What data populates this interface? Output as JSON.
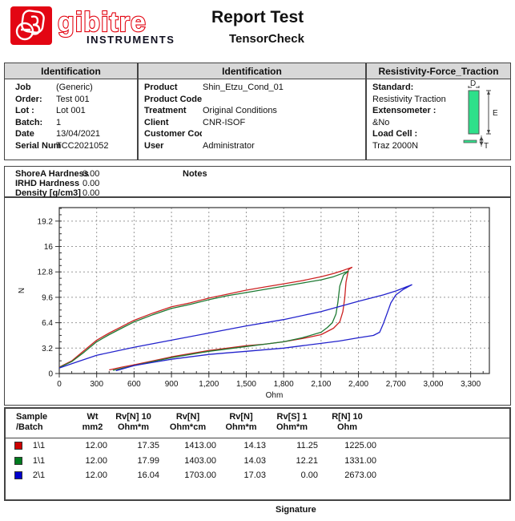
{
  "header": {
    "brand": "gibitre",
    "brand_sub": "INSTRUMENTS",
    "brand_red": "#e30613",
    "title": "Report Test",
    "subtitle": "TensorCheck"
  },
  "id_left": {
    "title": "Identification",
    "rows": [
      {
        "label": "Job",
        "value": "(Generic)"
      },
      {
        "label": "Order:",
        "value": "Test 001"
      },
      {
        "label": "Lot :",
        "value": "Lot 001"
      },
      {
        "label": "Batch:",
        "value": "1"
      },
      {
        "label": "Date",
        "value": "13/04/2021"
      },
      {
        "label": "Serial Number",
        "value": "TCC2021052"
      }
    ]
  },
  "id_mid": {
    "title": "Identification",
    "rows": [
      {
        "label": "Product",
        "value": "Shin_Etzu_Cond_01"
      },
      {
        "label": "Product Code",
        "value": ""
      },
      {
        "label": "Treatment",
        "value": "Original Conditions"
      },
      {
        "label": "Client",
        "value": "CNR-ISOF"
      },
      {
        "label": "Customer Cod",
        "value": ""
      },
      {
        "label": "User",
        "value": "Administrator"
      }
    ]
  },
  "id_right": {
    "title": "Resistivity-Force_Traction",
    "lines": [
      {
        "text": "Standard:",
        "bold": true
      },
      {
        "text": "Resistivity Traction",
        "bold": false
      },
      {
        "text": "Extensometer :",
        "bold": true
      },
      {
        "text": "&No",
        "bold": false
      },
      {
        "text": "Load Cell :",
        "bold": true
      },
      {
        "text": "Traz 2000N",
        "bold": false
      }
    ],
    "specimen": {
      "d_label": "D",
      "e_label": "E",
      "t_label": "T",
      "bar_color": "#2ee08a"
    }
  },
  "hardness": {
    "rows": [
      {
        "label": "ShoreA Hardness",
        "value": "0.00"
      },
      {
        "label": "IRHD  Hardness",
        "value": "0.00"
      },
      {
        "label": "Density [g/cm3]",
        "value": "0.00"
      }
    ],
    "notes_label": "Notes"
  },
  "chart_data": {
    "type": "line",
    "title": "",
    "xlabel": "Ohm",
    "ylabel": "N",
    "xlim": [
      0,
      3450
    ],
    "ylim": [
      0,
      20.9
    ],
    "grid": true,
    "legend": "none (colors keyed to results table swatches)",
    "x_ticks": [
      0,
      300,
      600,
      900,
      1200,
      1500,
      1800,
      2100,
      2400,
      2700,
      3000,
      3300
    ],
    "x_tick_labels": [
      "0",
      "300",
      "600",
      "900",
      "1,200",
      "1,500",
      "1,800",
      "2,100",
      "2,400",
      "2,700",
      "3,000",
      "3,300"
    ],
    "x_minor_step": 100,
    "y_ticks": [
      0,
      3.2,
      6.4,
      9.6,
      12.8,
      16,
      19.2
    ],
    "y_tick_labels": [
      "0",
      "3.2",
      "6.4",
      "9.6",
      "12.8",
      "16",
      "19.2"
    ],
    "y_minor_step": 0.8,
    "series": [
      {
        "name": "Sample 1\\1 loading",
        "color": "#cc2222",
        "points": [
          [
            0,
            0.8
          ],
          [
            100,
            1.6
          ],
          [
            200,
            2.9
          ],
          [
            300,
            4.2
          ],
          [
            400,
            5.1
          ],
          [
            500,
            5.9
          ],
          [
            600,
            6.7
          ],
          [
            750,
            7.6
          ],
          [
            900,
            8.4
          ],
          [
            1050,
            8.9
          ],
          [
            1200,
            9.5
          ],
          [
            1350,
            10.0
          ],
          [
            1500,
            10.5
          ],
          [
            1650,
            10.9
          ],
          [
            1800,
            11.3
          ],
          [
            1950,
            11.7
          ],
          [
            2100,
            12.2
          ],
          [
            2200,
            12.6
          ],
          [
            2280,
            13.0
          ],
          [
            2350,
            13.4
          ]
        ]
      },
      {
        "name": "Sample 1\\1 unloading",
        "color": "#cc2222",
        "points": [
          [
            2350,
            13.4
          ],
          [
            2320,
            13.1
          ],
          [
            2300,
            11.5
          ],
          [
            2290,
            9.5
          ],
          [
            2275,
            7.8
          ],
          [
            2250,
            6.5
          ],
          [
            2200,
            5.7
          ],
          [
            2100,
            4.9
          ],
          [
            1950,
            4.4
          ],
          [
            1800,
            4.0
          ],
          [
            1650,
            3.7
          ],
          [
            1500,
            3.5
          ],
          [
            1350,
            3.2
          ],
          [
            1200,
            2.9
          ],
          [
            1050,
            2.5
          ],
          [
            900,
            2.1
          ],
          [
            750,
            1.6
          ],
          [
            600,
            1.1
          ],
          [
            500,
            0.8
          ],
          [
            400,
            0.45
          ]
        ]
      },
      {
        "name": "Sample 1\\1 (repeat) loading",
        "color": "#1e7a33",
        "points": [
          [
            0,
            0.75
          ],
          [
            100,
            1.5
          ],
          [
            200,
            2.7
          ],
          [
            300,
            4.0
          ],
          [
            400,
            4.9
          ],
          [
            500,
            5.7
          ],
          [
            600,
            6.5
          ],
          [
            750,
            7.4
          ],
          [
            900,
            8.2
          ],
          [
            1050,
            8.7
          ],
          [
            1200,
            9.3
          ],
          [
            1350,
            9.8
          ],
          [
            1500,
            10.2
          ],
          [
            1650,
            10.6
          ],
          [
            1800,
            11.0
          ],
          [
            1950,
            11.4
          ],
          [
            2100,
            11.8
          ],
          [
            2200,
            12.2
          ],
          [
            2270,
            12.6
          ],
          [
            2320,
            12.9
          ]
        ]
      },
      {
        "name": "Sample 1\\1 (repeat) unloading",
        "color": "#1e7a33",
        "points": [
          [
            2320,
            12.9
          ],
          [
            2280,
            12.4
          ],
          [
            2250,
            11.0
          ],
          [
            2235,
            9.0
          ],
          [
            2220,
            7.5
          ],
          [
            2190,
            6.4
          ],
          [
            2150,
            5.8
          ],
          [
            2100,
            5.2
          ],
          [
            1950,
            4.5
          ],
          [
            1800,
            4.0
          ],
          [
            1650,
            3.7
          ],
          [
            1500,
            3.4
          ],
          [
            1350,
            3.1
          ],
          [
            1200,
            2.8
          ],
          [
            1050,
            2.4
          ],
          [
            900,
            2.0
          ],
          [
            750,
            1.5
          ],
          [
            600,
            1.0
          ],
          [
            430,
            0.4
          ]
        ]
      },
      {
        "name": "Sample 2\\1 loading",
        "color": "#2222cc",
        "points": [
          [
            0,
            0.7
          ],
          [
            150,
            1.5
          ],
          [
            300,
            2.3
          ],
          [
            600,
            3.3
          ],
          [
            900,
            4.2
          ],
          [
            1200,
            5.1
          ],
          [
            1500,
            6.0
          ],
          [
            1800,
            6.8
          ],
          [
            2100,
            7.8
          ],
          [
            2400,
            9.1
          ],
          [
            2600,
            9.9
          ],
          [
            2700,
            10.4
          ],
          [
            2830,
            11.2
          ]
        ]
      },
      {
        "name": "Sample 2\\1 unloading",
        "color": "#2222cc",
        "points": [
          [
            2830,
            11.2
          ],
          [
            2760,
            10.6
          ],
          [
            2700,
            9.9
          ],
          [
            2660,
            8.9
          ],
          [
            2630,
            7.6
          ],
          [
            2600,
            6.3
          ],
          [
            2570,
            5.2
          ],
          [
            2520,
            4.8
          ],
          [
            2400,
            4.5
          ],
          [
            2250,
            4.1
          ],
          [
            2100,
            3.8
          ],
          [
            1950,
            3.5
          ],
          [
            1800,
            3.2
          ],
          [
            1650,
            3.0
          ],
          [
            1500,
            2.8
          ],
          [
            1350,
            2.6
          ],
          [
            1200,
            2.4
          ],
          [
            1050,
            2.1
          ],
          [
            900,
            1.8
          ],
          [
            750,
            1.4
          ],
          [
            600,
            1.0
          ],
          [
            455,
            0.35
          ]
        ]
      }
    ]
  },
  "results_table": {
    "headers": [
      "Sample\n/Batch",
      "Wt\nmm2",
      "Rv[N] 10\nOhm*m",
      "Rv[N]\nOhm*cm",
      "Rv[N]\nOhm*m",
      "Rv[S] 1\nOhm*m",
      "R[N] 10\nOhm"
    ],
    "rows": [
      {
        "color": "#cc0000",
        "sample": "1\\1",
        "wt": "12.00",
        "rv10": "17.35",
        "rv_cm": "1413.00",
        "rv_m": "14.13",
        "rvs1": "11.25",
        "r10": "1225.00"
      },
      {
        "color": "#007a1e",
        "sample": "1\\1",
        "wt": "12.00",
        "rv10": "17.99",
        "rv_cm": "1403.00",
        "rv_m": "14.03",
        "rvs1": "12.21",
        "r10": "1331.00"
      },
      {
        "color": "#0000cc",
        "sample": "2\\1",
        "wt": "12.00",
        "rv10": "16.04",
        "rv_cm": "1703.00",
        "rv_m": "17.03",
        "rvs1": "0.00",
        "r10": "2673.00"
      }
    ]
  },
  "signature_label": "Signature"
}
